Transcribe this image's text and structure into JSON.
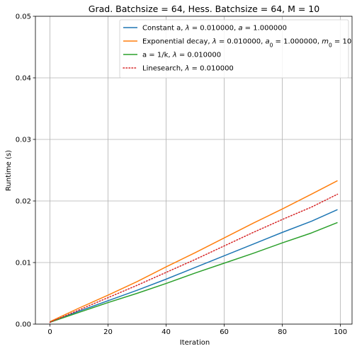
{
  "chart_data": {
    "type": "line",
    "title": "Grad. Batchsize = 64, Hess. Batchsize = 64, M = 10",
    "xlabel": "Iteration",
    "ylabel": "Runtime (s)",
    "xlim": [
      -5,
      104
    ],
    "ylim": [
      0,
      0.05
    ],
    "xticks": [
      0,
      20,
      40,
      60,
      80,
      100
    ],
    "yticks": [
      0.0,
      0.01,
      0.02,
      0.03,
      0.04,
      0.05
    ],
    "ytick_labels": [
      "0.00",
      "0.01",
      "0.02",
      "0.03",
      "0.04",
      "0.05"
    ],
    "grid": true,
    "legend_position": "top-right",
    "series": [
      {
        "name": "Constant a, λ = 0.010000, a = 1.000000",
        "name_parts": [
          {
            "t": "Constant a, "
          },
          {
            "t": "λ",
            "it": true
          },
          {
            "t": " = 0.010000, "
          },
          {
            "t": "a",
            "it": true
          },
          {
            "t": " = 1.000000"
          }
        ],
        "color": "#1f77b4",
        "dash": "solid",
        "x": [
          0,
          10,
          20,
          30,
          40,
          50,
          60,
          70,
          80,
          90,
          99
        ],
        "y": [
          0.0003,
          0.0021,
          0.0038,
          0.0055,
          0.0073,
          0.0092,
          0.0111,
          0.013,
          0.0149,
          0.0167,
          0.0186
        ]
      },
      {
        "name": "Exponential decay, λ = 0.010000, a0 = 1.000000, m0 = 10",
        "name_parts": [
          {
            "t": "Exponential decay, "
          },
          {
            "t": "λ",
            "it": true
          },
          {
            "t": " = 0.010000, "
          },
          {
            "t": "a",
            "it": true
          },
          {
            "t": "0",
            "sub": true
          },
          {
            "t": " = 1.000000, "
          },
          {
            "t": "m",
            "it": true
          },
          {
            "t": "0",
            "sub": true
          },
          {
            "t": " = 10"
          }
        ],
        "color": "#ff7f0e",
        "dash": "solid",
        "x": [
          0,
          10,
          20,
          30,
          40,
          50,
          60,
          70,
          80,
          90,
          99
        ],
        "y": [
          0.0004,
          0.0026,
          0.0047,
          0.0069,
          0.0093,
          0.0116,
          0.014,
          0.0164,
          0.0187,
          0.0211,
          0.0233
        ]
      },
      {
        "name": "a = 1/k, λ = 0.010000",
        "name_parts": [
          {
            "t": "a = 1/k, "
          },
          {
            "t": "λ",
            "it": true
          },
          {
            "t": " = 0.010000"
          }
        ],
        "color": "#2ca02c",
        "dash": "solid",
        "x": [
          0,
          10,
          20,
          30,
          40,
          50,
          60,
          70,
          80,
          90,
          99
        ],
        "y": [
          0.0003,
          0.0019,
          0.0035,
          0.005,
          0.0066,
          0.0083,
          0.0099,
          0.0115,
          0.0132,
          0.0148,
          0.0165
        ]
      },
      {
        "name": "Linesearch, λ = 0.010000",
        "name_parts": [
          {
            "t": "Linesearch, "
          },
          {
            "t": "λ",
            "it": true
          },
          {
            "t": " = 0.010000"
          }
        ],
        "color": "#d62728",
        "dash": "dotted",
        "x": [
          0,
          10,
          20,
          30,
          40,
          50,
          60,
          70,
          80,
          90,
          99
        ],
        "y": [
          0.0003,
          0.0023,
          0.0043,
          0.0063,
          0.0084,
          0.0105,
          0.0127,
          0.0149,
          0.017,
          0.019,
          0.0211
        ]
      }
    ]
  }
}
